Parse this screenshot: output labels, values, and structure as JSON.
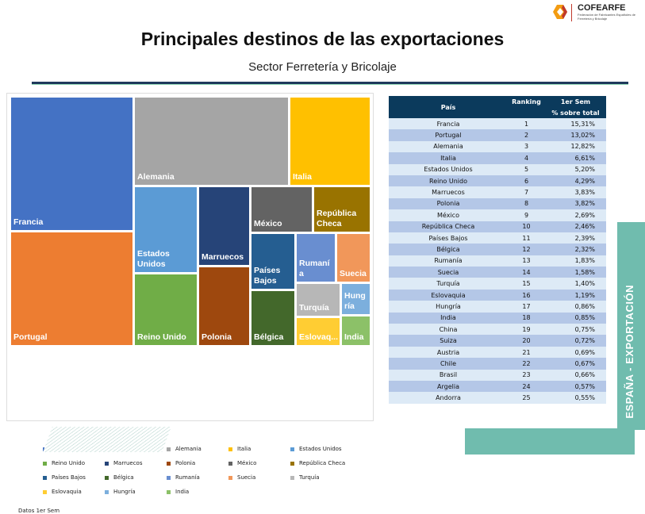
{
  "logo": {
    "name": "COFEARFE",
    "subtitle": "Federación de Fabricantes Españoles de Ferretería y Bricolaje"
  },
  "title": "Principales destinos de las exportaciones",
  "subtitle": "Sector Ferretería y Bricolaje",
  "side_label": "ESPAÑA - EXPORTACIÓN",
  "note": "Datos 1er Sem",
  "table": {
    "headers": {
      "country": "País",
      "ranking": "Ranking",
      "period": "1er Sem",
      "share": "% sobre total"
    },
    "rows": [
      {
        "country": "Francia",
        "rank": "1",
        "share": "15,31%"
      },
      {
        "country": "Portugal",
        "rank": "2",
        "share": "13,02%"
      },
      {
        "country": "Alemania",
        "rank": "3",
        "share": "12,82%"
      },
      {
        "country": "Italia",
        "rank": "4",
        "share": "6,61%"
      },
      {
        "country": "Estados Unidos",
        "rank": "5",
        "share": "5,20%"
      },
      {
        "country": "Reino Unido",
        "rank": "6",
        "share": "4,29%"
      },
      {
        "country": "Marruecos",
        "rank": "7",
        "share": "3,83%"
      },
      {
        "country": "Polonia",
        "rank": "8",
        "share": "3,82%"
      },
      {
        "country": "México",
        "rank": "9",
        "share": "2,69%"
      },
      {
        "country": "República Checa",
        "rank": "10",
        "share": "2,46%"
      },
      {
        "country": "Países Bajos",
        "rank": "11",
        "share": "2,39%"
      },
      {
        "country": "Bélgica",
        "rank": "12",
        "share": "2,32%"
      },
      {
        "country": "Rumanía",
        "rank": "13",
        "share": "1,83%"
      },
      {
        "country": "Suecia",
        "rank": "14",
        "share": "1,58%"
      },
      {
        "country": "Turquía",
        "rank": "15",
        "share": "1,40%"
      },
      {
        "country": "Eslovaquia",
        "rank": "16",
        "share": "1,19%"
      },
      {
        "country": "Hungría",
        "rank": "17",
        "share": "0,86%"
      },
      {
        "country": "India",
        "rank": "18",
        "share": "0,85%"
      },
      {
        "country": "China",
        "rank": "19",
        "share": "0,75%"
      },
      {
        "country": "Suiza",
        "rank": "20",
        "share": "0,72%"
      },
      {
        "country": "Austria",
        "rank": "21",
        "share": "0,69%"
      },
      {
        "country": "Chile",
        "rank": "22",
        "share": "0,67%"
      },
      {
        "country": "Brasil",
        "rank": "23",
        "share": "0,66%"
      },
      {
        "country": "Argelia",
        "rank": "24",
        "share": "0,57%"
      },
      {
        "country": "Andorra",
        "rank": "25",
        "share": "0,55%"
      }
    ]
  },
  "chart_data": {
    "type": "treemap",
    "title": "",
    "legend_position": "bottom",
    "items": [
      {
        "name": "Francia",
        "label": "Francia",
        "value": 15.31,
        "color": "#4472C4"
      },
      {
        "name": "Portugal",
        "label": "Portugal",
        "value": 13.02,
        "color": "#ED7D31"
      },
      {
        "name": "Alemania",
        "label": "Alemania",
        "value": 12.82,
        "color": "#A5A5A5"
      },
      {
        "name": "Italia",
        "label": "Italia",
        "value": 6.61,
        "color": "#FFC000"
      },
      {
        "name": "Estados Unidos",
        "label": "Estados Unidos",
        "value": 5.2,
        "color": "#5B9BD5"
      },
      {
        "name": "Reino Unido",
        "label": "Reino Unido",
        "value": 4.29,
        "color": "#70AD47"
      },
      {
        "name": "Marruecos",
        "label": "Marruecos",
        "value": 3.83,
        "color": "#264478"
      },
      {
        "name": "Polonia",
        "label": "Polonia",
        "value": 3.82,
        "color": "#9E480E"
      },
      {
        "name": "México",
        "label": "México",
        "value": 2.69,
        "color": "#636363"
      },
      {
        "name": "República Checa",
        "label": "República Checa",
        "value": 2.46,
        "color": "#997300"
      },
      {
        "name": "Países Bajos",
        "label": "Países Bajos",
        "value": 2.39,
        "color": "#255E91"
      },
      {
        "name": "Bélgica",
        "label": "Bélgica",
        "value": 2.32,
        "color": "#43682B"
      },
      {
        "name": "Rumanía",
        "label": "Rumaní a",
        "value": 1.83,
        "color": "#698ED0"
      },
      {
        "name": "Suecia",
        "label": "Suecia",
        "value": 1.58,
        "color": "#F1975A"
      },
      {
        "name": "Turquía",
        "label": "Turquía",
        "value": 1.4,
        "color": "#B7B7B7"
      },
      {
        "name": "Eslovaquia",
        "label": "Eslovaq...",
        "value": 1.19,
        "color": "#FFCD33"
      },
      {
        "name": "Hungría",
        "label": "Hung ría",
        "value": 0.86,
        "color": "#7CAFDD"
      },
      {
        "name": "India",
        "label": "India",
        "value": 0.85,
        "color": "#8CC168"
      }
    ]
  }
}
